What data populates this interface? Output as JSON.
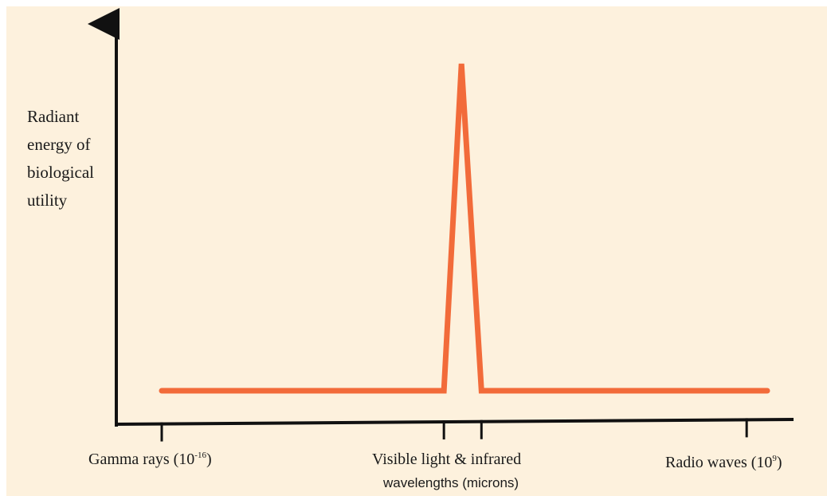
{
  "chart_data": {
    "type": "line",
    "ylabel_lines": [
      "Radiant",
      "energy of",
      "biological",
      "utility"
    ],
    "xlabel": "wavelengths (microns)",
    "x_ticks": [
      {
        "label_main": "Gamma rays (10",
        "label_exp": "-16",
        "label_end": ")"
      },
      {
        "label_main": "Visible light & infrared",
        "label_exp": "",
        "label_end": ""
      },
      {
        "label_main": "",
        "label_exp": "",
        "label_end": ""
      },
      {
        "label_main": "Radio waves (10",
        "label_exp": "9",
        "label_end": ")"
      }
    ],
    "series": [
      {
        "color": "#f26b3a",
        "x": [
          0,
          0.466,
          0.495,
          0.528,
          1
        ],
        "y": [
          0.05,
          0.05,
          1.0,
          0.05,
          0.05
        ]
      }
    ],
    "x_tick_positions": [
      0,
      0.466,
      0.528,
      0.966
    ],
    "grid": false
  }
}
